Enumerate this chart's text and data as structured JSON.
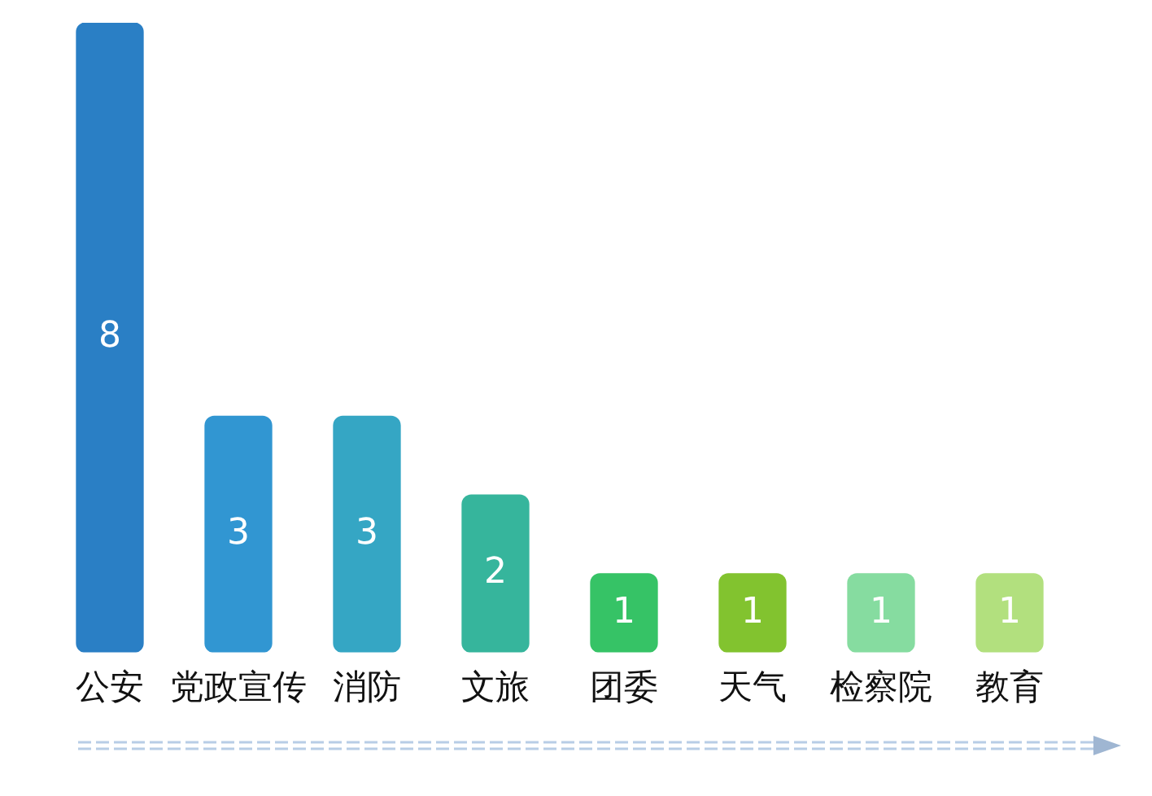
{
  "chart_data": {
    "type": "bar",
    "categories": [
      "公安",
      "党政宣传",
      "消防",
      "文旅",
      "团委",
      "天气",
      "检察院",
      "教育"
    ],
    "values": [
      8,
      3,
      3,
      2,
      1,
      1,
      1,
      1
    ],
    "colors": [
      "#2a7fc5",
      "#3196d2",
      "#35a6c4",
      "#36b59c",
      "#36c366",
      "#82c32f",
      "#86dca0",
      "#b2e07e"
    ],
    "data_labels": true,
    "grid": false,
    "legend": false
  }
}
